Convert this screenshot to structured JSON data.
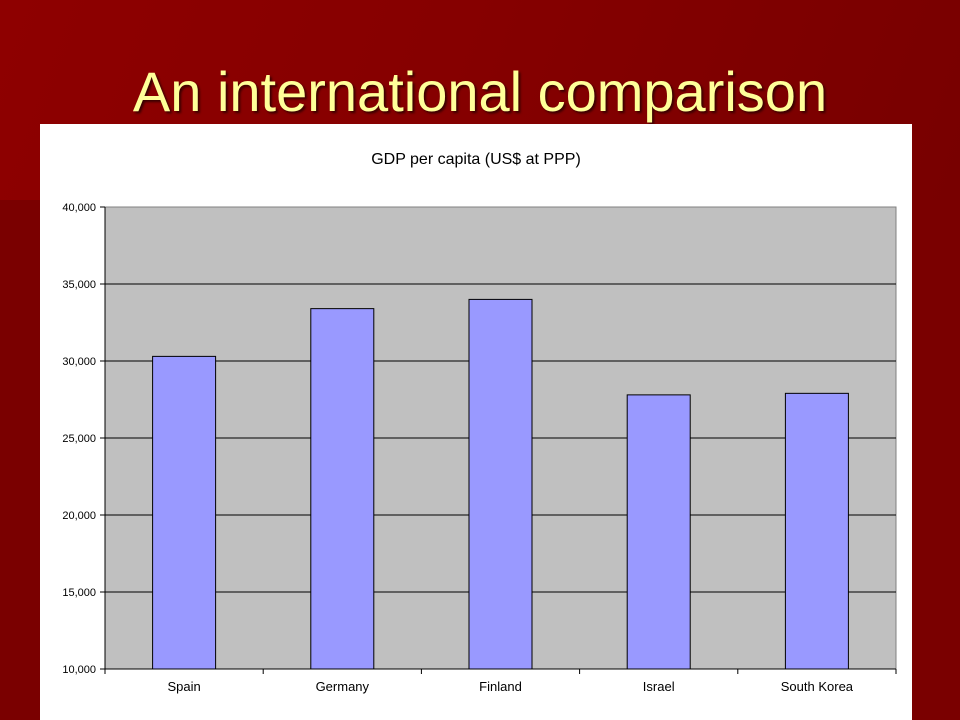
{
  "slide": {
    "title": "An international comparison"
  },
  "colors": {
    "background": "#7a0000",
    "title_text": "#ffff99",
    "plot_area": "#c0c0c0",
    "bar_fill": "#9999ff"
  },
  "chart_data": {
    "type": "bar",
    "title": "GDP per capita (US$ at PPP)",
    "xlabel": "",
    "ylabel": "",
    "categories": [
      "Spain",
      "Germany",
      "Finland",
      "Israel",
      "South Korea"
    ],
    "values": [
      30300,
      33400,
      34000,
      27800,
      27900
    ],
    "ylim": [
      10000,
      40000
    ],
    "yticks": [
      10000,
      15000,
      20000,
      25000,
      30000,
      35000,
      40000
    ],
    "ytick_labels": [
      "10,000",
      "15,000",
      "20,000",
      "25,000",
      "30,000",
      "35,000",
      "40,000"
    ],
    "grid": true,
    "legend": false
  }
}
